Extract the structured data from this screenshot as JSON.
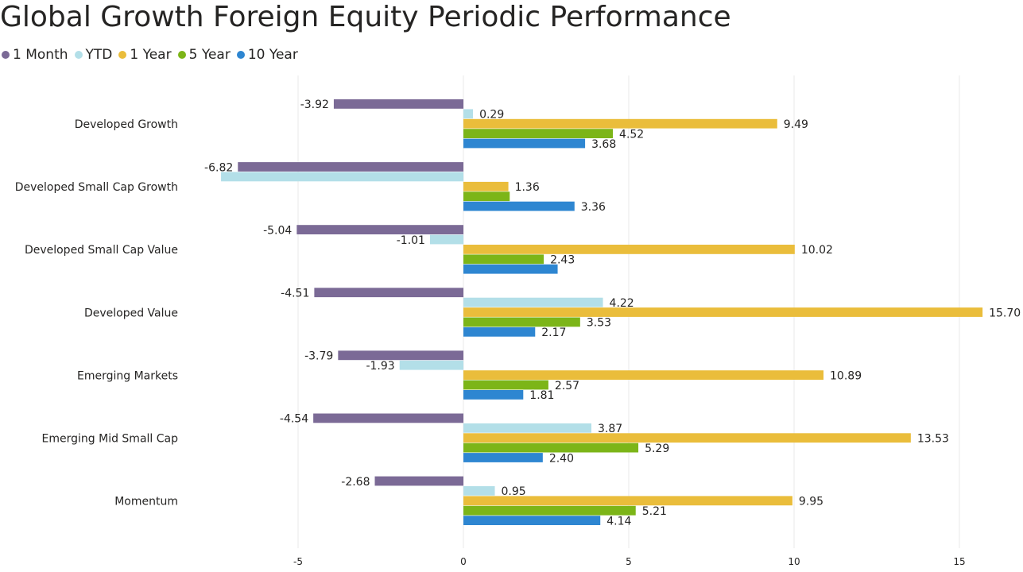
{
  "title": "Global Growth Foreign Equity Periodic Performance",
  "legend": [
    {
      "label": "1 Month",
      "color": "#7B6A96"
    },
    {
      "label": "YTD",
      "color": "#B3DFE8"
    },
    {
      "label": "1 Year",
      "color": "#EABD3B"
    },
    {
      "label": "5 Year",
      "color": "#7CB518"
    },
    {
      "label": "10 Year",
      "color": "#2E86D1"
    }
  ],
  "chart_data": {
    "type": "bar",
    "orientation": "horizontal",
    "title": "Global Growth Foreign Equity Periodic Performance",
    "categories": [
      "Developed Growth",
      "Developed Small Cap Growth",
      "Developed Small Cap Value",
      "Developed Value",
      "Emerging Markets",
      "Emerging Mid Small Cap",
      "Momentum"
    ],
    "series": [
      {
        "name": "1 Month",
        "color": "#7B6A96",
        "values": [
          -3.92,
          -6.82,
          -5.04,
          -4.51,
          -3.79,
          -4.54,
          -2.68
        ],
        "labels": [
          "-3.92",
          "-6.82",
          "-5.04",
          "-4.51",
          "-3.79",
          "-4.54",
          "-2.68"
        ]
      },
      {
        "name": "YTD",
        "color": "#B3DFE8",
        "values": [
          0.29,
          -7.33,
          -1.01,
          4.22,
          -1.93,
          3.87,
          0.95
        ],
        "labels": [
          "0.29",
          "",
          "-1.01",
          "4.22",
          "-1.93",
          "3.87",
          "0.95"
        ]
      },
      {
        "name": "1 Year",
        "color": "#EABD3B",
        "values": [
          9.49,
          1.36,
          10.02,
          15.7,
          10.89,
          13.53,
          9.95
        ],
        "labels": [
          "9.49",
          "1.36",
          "10.02",
          "15.70",
          "10.89",
          "13.53",
          "9.95"
        ]
      },
      {
        "name": "5 Year",
        "color": "#7CB518",
        "values": [
          4.52,
          1.4,
          2.43,
          3.53,
          2.57,
          5.29,
          5.21
        ],
        "labels": [
          "4.52",
          "",
          "2.43",
          "3.53",
          "2.57",
          "5.29",
          "5.21"
        ]
      },
      {
        "name": "10 Year",
        "color": "#2E86D1",
        "values": [
          3.68,
          3.36,
          2.85,
          2.17,
          1.81,
          2.4,
          4.14
        ],
        "labels": [
          "3.68",
          "3.36",
          "",
          "2.17",
          "1.81",
          "2.40",
          "4.14"
        ]
      }
    ],
    "xlim": [
      -10,
      16
    ],
    "xticks": [
      -5,
      0,
      5,
      10,
      15
    ],
    "xtick_labels": [
      "-5",
      "0",
      "5",
      "10",
      "15"
    ],
    "grid": true,
    "legend_position": "top-left"
  }
}
